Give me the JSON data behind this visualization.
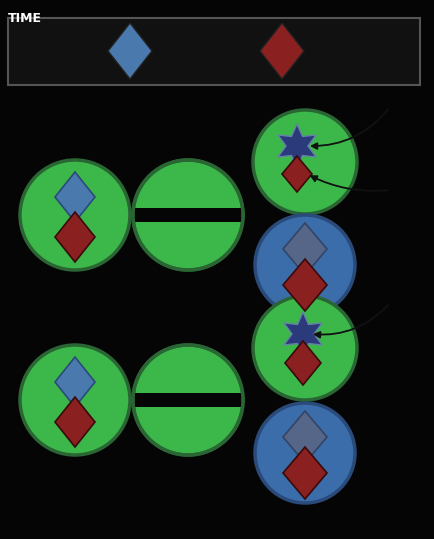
{
  "bg_color": "#050505",
  "time_label": "TIME",
  "time_label_color": "#ffffff",
  "time_label_fontsize": 9,
  "legend_diamond1_color": "#4a7aad",
  "legend_diamond2_color": "#8b2020",
  "green_color": "#3cb84a",
  "green_outline": "#2a6633",
  "blue_color": "#3a6daa",
  "blue_outline": "#2a4a7a",
  "star_color": "#2a3a7a",
  "star_outline": "#6680aa",
  "diamond_blue": "#4a7aad",
  "diamond_blue_outline": "#2a4a7a",
  "diamond_red": "#8b2020",
  "diamond_red_outline": "#3a0a0a",
  "diamond_blue_faded": "#556688",
  "diamond_red_faded": "#7a3030",
  "black_bar": "#050505",
  "legend_box_outline": "#555555",
  "legend_box_fill": "#111111",
  "arrow_color": "#111111"
}
